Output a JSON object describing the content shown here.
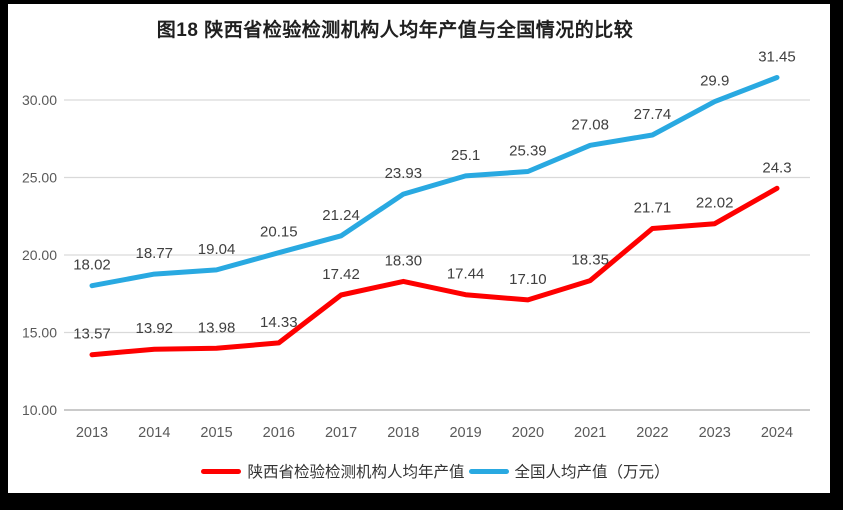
{
  "chart_data": {
    "type": "line",
    "title": "图18 陕西省检验检测机构人均年产值与全国情况的比较",
    "categories": [
      "2013",
      "2014",
      "2015",
      "2016",
      "2017",
      "2018",
      "2019",
      "2020",
      "2021",
      "2022",
      "2023",
      "2024"
    ],
    "series": [
      {
        "name": "陕西省检验检测机构人均年产值",
        "color": "#fe0000",
        "values": [
          13.57,
          13.92,
          13.98,
          14.33,
          17.42,
          18.3,
          17.44,
          17.1,
          18.35,
          21.71,
          22.02,
          24.3
        ],
        "labels": [
          "13.57",
          "13.92",
          "13.98",
          "14.33",
          "17.42",
          "18.30",
          "17.44",
          "17.10",
          "18.35",
          "21.71",
          "22.02",
          "24.3"
        ]
      },
      {
        "name": "全国人均产值（万元）",
        "color": "#29a9e1",
        "values": [
          18.02,
          18.77,
          19.04,
          20.15,
          21.24,
          23.93,
          25.1,
          25.39,
          27.08,
          27.74,
          29.9,
          31.45
        ],
        "labels": [
          "18.02",
          "18.77",
          "19.04",
          "20.15",
          "21.24",
          "23.93",
          "25.1",
          "25.39",
          "27.08",
          "27.74",
          "29.9",
          "31.45"
        ]
      }
    ],
    "y_axis": {
      "tick_values": [
        10,
        15,
        20,
        25,
        30
      ],
      "tick_labels": [
        "10.00",
        "15.00",
        "20.00",
        "25.00",
        "30.00"
      ],
      "min": 10,
      "max": 32.5
    },
    "x_axis": {
      "min_label": "2013",
      "max_label": "2024"
    },
    "grid": "horizontal",
    "legend_position": "bottom",
    "colors": {
      "axis_text": "#595959",
      "data_label": "#404040",
      "gridline": "#d9d9d9",
      "axis_line": "#c3c3c3",
      "title_text": "#1f1f1f",
      "legend_text": "#333333",
      "panel_background": "#ffffff",
      "frame_background": "#000000"
    }
  }
}
